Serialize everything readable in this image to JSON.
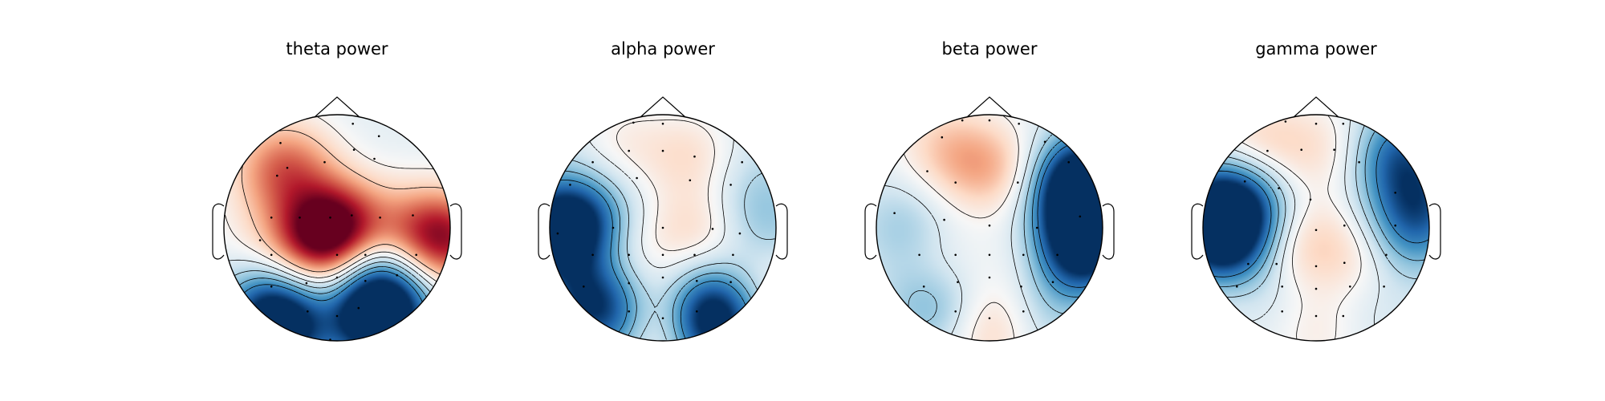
{
  "chart_data": {
    "type": "heatmap",
    "subtype": "scalp-topomap",
    "colormap": "RdBu_r (white = 0, blue = negative, red = positive)",
    "colorbar": "none",
    "contours": "solid for higher levels, dashed for lower levels",
    "sensor_markers": "small black dots",
    "head_outline": "circle with nose and ears",
    "panels": [
      {
        "title": "theta power",
        "sensors": [
          [
            0.14,
            -0.92
          ],
          [
            0.37,
            -0.81
          ],
          [
            0.33,
            -0.61
          ],
          [
            0.15,
            -0.69
          ],
          [
            -0.11,
            -0.58
          ],
          [
            -0.44,
            -0.53
          ],
          [
            -0.53,
            -0.46
          ],
          [
            -0.5,
            -0.75
          ],
          [
            -0.58,
            -0.09
          ],
          [
            -0.33,
            -0.09
          ],
          [
            -0.06,
            -0.09
          ],
          [
            0.13,
            -0.11
          ],
          [
            0.38,
            -0.09
          ],
          [
            0.67,
            -0.11
          ],
          [
            -0.68,
            0.11
          ],
          [
            -0.58,
            0.24
          ],
          [
            0.0,
            0.24
          ],
          [
            0.25,
            0.24
          ],
          [
            0.7,
            0.24
          ],
          [
            -0.58,
            0.52
          ],
          [
            -0.27,
            0.49
          ],
          [
            0.0,
            0.44
          ],
          [
            0.25,
            0.47
          ],
          [
            0.53,
            0.42
          ],
          [
            -0.26,
            0.74
          ],
          [
            0.0,
            0.78
          ],
          [
            0.19,
            0.71
          ],
          [
            -0.06,
            0.99
          ]
        ],
        "features": [
          {
            "x": -0.22,
            "y": 0.12,
            "v": 0.65
          },
          {
            "x": 0.0,
            "y": -0.05,
            "v": 0.55
          },
          {
            "x": 0.1,
            "y": 0.1,
            "v": 0.45
          },
          {
            "x": -0.38,
            "y": -0.55,
            "v": 0.35
          },
          {
            "x": -0.6,
            "y": -0.5,
            "v": 0.22
          },
          {
            "x": -0.75,
            "y": 0.1,
            "v": 0.0
          },
          {
            "x": 0.95,
            "y": 0.1,
            "v": 0.9
          },
          {
            "x": 0.58,
            "y": 0.05,
            "v": 0.3
          },
          {
            "x": 0.25,
            "y": 0.22,
            "v": -0.55
          },
          {
            "x": 0.42,
            "y": 0.4,
            "v": -0.35
          },
          {
            "x": -0.45,
            "y": 0.9,
            "v": -1.05
          },
          {
            "x": -0.6,
            "y": 0.72,
            "v": -0.8
          },
          {
            "x": 0.3,
            "y": 0.82,
            "v": -1.15
          },
          {
            "x": 0.45,
            "y": 0.68,
            "v": -0.85
          },
          {
            "x": -0.02,
            "y": 0.85,
            "v": 0.1
          },
          {
            "x": 0.1,
            "y": -0.4,
            "v": -0.15
          },
          {
            "x": 0.45,
            "y": -0.45,
            "v": -0.1
          }
        ],
        "baseline": -0.12,
        "levels": [
          -0.75,
          -0.55,
          -0.35,
          -0.15,
          0.05,
          0.3
        ],
        "vmax": 1.15
      },
      {
        "title": "alpha power",
        "sensors": [
          [
            -0.26,
            -0.93
          ],
          [
            0.0,
            -0.92
          ],
          [
            -0.3,
            -0.68
          ],
          [
            0.0,
            -0.68
          ],
          [
            0.28,
            -0.63
          ],
          [
            -0.62,
            -0.58
          ],
          [
            0.7,
            -0.58
          ],
          [
            -0.82,
            -0.38
          ],
          [
            -0.23,
            -0.44
          ],
          [
            0.24,
            -0.42
          ],
          [
            0.6,
            -0.38
          ],
          [
            -0.93,
            0.05
          ],
          [
            -0.44,
            0.0
          ],
          [
            0.0,
            0.0
          ],
          [
            0.44,
            0.01
          ],
          [
            0.68,
            0.05
          ],
          [
            -0.62,
            0.24
          ],
          [
            -0.3,
            0.24
          ],
          [
            0.0,
            0.24
          ],
          [
            0.28,
            0.24
          ],
          [
            0.62,
            0.24
          ],
          [
            -0.7,
            0.52
          ],
          [
            -0.3,
            0.49
          ],
          [
            0.0,
            0.44
          ],
          [
            0.3,
            0.47
          ],
          [
            0.6,
            0.48
          ],
          [
            -0.3,
            0.74
          ],
          [
            0.3,
            0.74
          ],
          [
            0.0,
            0.8
          ]
        ],
        "features": [
          {
            "x": -0.95,
            "y": 0.02,
            "v": -1.1
          },
          {
            "x": -0.75,
            "y": -0.05,
            "v": -0.8
          },
          {
            "x": -0.55,
            "y": 0.05,
            "v": -0.45
          },
          {
            "x": -0.65,
            "y": 0.62,
            "v": -0.95
          },
          {
            "x": -0.4,
            "y": 0.78,
            "v": -0.75
          },
          {
            "x": 0.38,
            "y": 0.85,
            "v": -1.2
          },
          {
            "x": 0.5,
            "y": 0.68,
            "v": -0.8
          },
          {
            "x": 0.85,
            "y": 0.0,
            "v": -0.45
          },
          {
            "x": 0.8,
            "y": -0.35,
            "v": -0.35
          },
          {
            "x": 0.0,
            "y": 0.85,
            "v": 0.45
          },
          {
            "x": -0.42,
            "y": 0.25,
            "v": 0.2
          },
          {
            "x": 0.25,
            "y": -0.65,
            "v": 0.15
          },
          {
            "x": 0.35,
            "y": 0.05,
            "v": 0.15
          },
          {
            "x": -0.35,
            "y": -0.75,
            "v": 0.05
          },
          {
            "x": 0.82,
            "y": 0.55,
            "v": 0.15
          },
          {
            "x": 0.0,
            "y": 0.0,
            "v": -0.1
          }
        ],
        "baseline": -0.2,
        "levels": [
          -0.75,
          -0.55,
          -0.35,
          -0.1,
          0.05
        ],
        "vmax": 1.2
      },
      {
        "title": "beta power",
        "sensors": [
          [
            -0.24,
            -0.95
          ],
          [
            0.0,
            -0.95
          ],
          [
            0.26,
            -0.92
          ],
          [
            -0.42,
            -0.8
          ],
          [
            0.49,
            -0.76
          ],
          [
            -0.55,
            -0.5
          ],
          [
            0.7,
            -0.58
          ],
          [
            -0.3,
            -0.4
          ],
          [
            0.25,
            -0.4
          ],
          [
            -0.84,
            -0.13
          ],
          [
            -0.4,
            -0.07
          ],
          [
            0.0,
            -0.02
          ],
          [
            0.42,
            0.0
          ],
          [
            0.8,
            -0.1
          ],
          [
            -0.62,
            0.24
          ],
          [
            -0.3,
            0.24
          ],
          [
            0.0,
            0.24
          ],
          [
            0.3,
            0.24
          ],
          [
            0.6,
            0.24
          ],
          [
            -0.58,
            0.52
          ],
          [
            -0.28,
            0.48
          ],
          [
            0.0,
            0.44
          ],
          [
            0.28,
            0.52
          ],
          [
            0.56,
            0.48
          ],
          [
            -0.3,
            0.74
          ],
          [
            0.0,
            0.8
          ],
          [
            0.3,
            0.74
          ]
        ],
        "features": [
          {
            "x": 0.92,
            "y": 0.05,
            "v": -1.25
          },
          {
            "x": 0.82,
            "y": -0.45,
            "v": -1.15
          },
          {
            "x": 0.78,
            "y": -0.25,
            "v": -0.8
          },
          {
            "x": 0.7,
            "y": 0.3,
            "v": -0.75
          },
          {
            "x": -0.75,
            "y": 0.0,
            "v": -0.45
          },
          {
            "x": -0.55,
            "y": 0.65,
            "v": -0.5
          },
          {
            "x": -0.3,
            "y": 0.75,
            "v": -0.35
          },
          {
            "x": 0.4,
            "y": 0.8,
            "v": -0.35
          },
          {
            "x": 0.55,
            "y": 0.5,
            "v": -0.15
          },
          {
            "x": -0.15,
            "y": -0.55,
            "v": 0.25
          },
          {
            "x": 0.15,
            "y": -0.5,
            "v": 0.15
          },
          {
            "x": -0.45,
            "y": -0.75,
            "v": 0.15
          },
          {
            "x": 0.0,
            "y": 0.88,
            "v": 0.4
          },
          {
            "x": -0.45,
            "y": 0.35,
            "v": 0.1
          },
          {
            "x": 0.4,
            "y": 0.3,
            "v": 0.1
          },
          {
            "x": 0.0,
            "y": 0.0,
            "v": -0.15
          }
        ],
        "baseline": -0.12,
        "levels": [
          -0.9,
          -0.7,
          -0.45,
          -0.2,
          0.05
        ],
        "vmax": 1.25
      },
      {
        "title": "gamma power",
        "sensors": [
          [
            -0.27,
            -0.94
          ],
          [
            0.0,
            -0.92
          ],
          [
            0.24,
            -0.92
          ],
          [
            -0.43,
            -0.68
          ],
          [
            -0.13,
            -0.69
          ],
          [
            0.16,
            -0.69
          ],
          [
            0.38,
            -0.58
          ],
          [
            -0.63,
            -0.41
          ],
          [
            0.7,
            -0.31
          ],
          [
            -0.33,
            -0.35
          ],
          [
            -0.05,
            -0.25
          ],
          [
            0.0,
            0.02
          ],
          [
            0.25,
            -0.02
          ],
          [
            0.7,
            -0.02
          ],
          [
            -0.6,
            0.32
          ],
          [
            -0.35,
            0.32
          ],
          [
            0.0,
            0.34
          ],
          [
            0.25,
            0.31
          ],
          [
            0.62,
            0.24
          ],
          [
            -0.7,
            0.52
          ],
          [
            -0.3,
            0.52
          ],
          [
            0.0,
            0.54
          ],
          [
            0.3,
            0.52
          ],
          [
            0.6,
            0.52
          ],
          [
            -0.3,
            0.74
          ],
          [
            0.0,
            0.78
          ],
          [
            0.24,
            0.78
          ]
        ],
        "features": [
          {
            "x": -0.88,
            "y": -0.1,
            "v": -1.2
          },
          {
            "x": -0.8,
            "y": 0.15,
            "v": -0.95
          },
          {
            "x": -0.65,
            "y": -0.25,
            "v": -0.75
          },
          {
            "x": 0.72,
            "y": -0.65,
            "v": -0.9
          },
          {
            "x": 0.9,
            "y": -0.2,
            "v": -0.8
          },
          {
            "x": 0.8,
            "y": 0.1,
            "v": -0.5
          },
          {
            "x": -0.45,
            "y": 0.6,
            "v": -0.35
          },
          {
            "x": 0.4,
            "y": 0.7,
            "v": -0.25
          },
          {
            "x": -0.65,
            "y": -0.75,
            "v": 0.1
          },
          {
            "x": -0.33,
            "y": -0.72,
            "v": 0.1
          },
          {
            "x": 0.15,
            "y": -0.7,
            "v": 0.1
          },
          {
            "x": -0.2,
            "y": 0.2,
            "v": 0.15
          },
          {
            "x": 0.35,
            "y": 0.25,
            "v": 0.15
          },
          {
            "x": -0.7,
            "y": 0.6,
            "v": 0.05
          },
          {
            "x": 0.0,
            "y": 0.92,
            "v": 0.1
          },
          {
            "x": 0.0,
            "y": 0.0,
            "v": -0.05
          }
        ],
        "baseline": -0.15,
        "levels": [
          -0.8,
          -0.55,
          -0.35,
          -0.15,
          0.02
        ],
        "vmax": 1.2
      }
    ]
  }
}
